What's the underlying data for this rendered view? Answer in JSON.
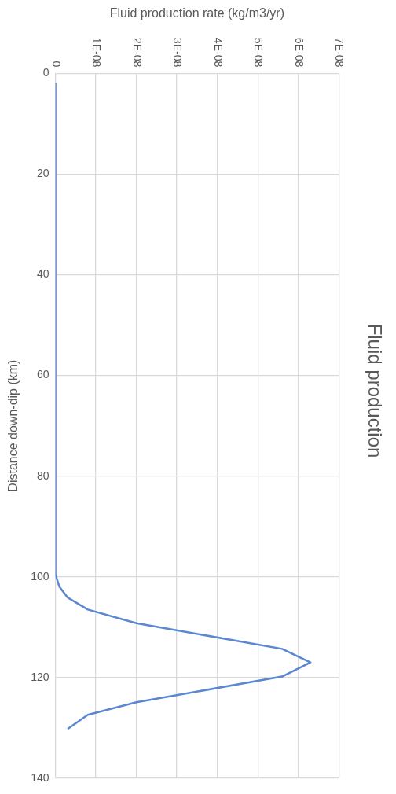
{
  "chart_data": {
    "type": "line",
    "title": "Fluid production",
    "xlabel": "Fluid production rate (kg/m3/yr)",
    "ylabel": "Distance down-dip (km)",
    "x": [
      0,
      0,
      1e-09,
      3e-09,
      8e-09,
      2e-08,
      5.6e-08,
      6.3e-08,
      5.6e-08,
      2e-08,
      8e-09,
      3e-09
    ],
    "series": [
      {
        "color": "#5b87d0",
        "values": [
          2,
          99.5,
          102,
          104.1,
          106.5,
          109.2,
          114.3,
          117,
          119.8,
          124.9,
          127.4,
          130.2
        ]
      }
    ],
    "ylim": [
      140,
      0
    ],
    "yticks": [
      0,
      20,
      40,
      60,
      80,
      100,
      120,
      140
    ],
    "xlim": [
      0,
      7e-08
    ],
    "xticks": [
      0,
      {
        "value": 1e-08,
        "label": "1E-08"
      },
      {
        "value": 2e-08,
        "label": "2E-08"
      },
      {
        "value": 3e-08,
        "label": "3E-08"
      },
      {
        "value": 4e-08,
        "label": "4E-08"
      },
      {
        "value": 5e-08,
        "label": "5E-08"
      },
      {
        "value": 6e-08,
        "label": "6E-08"
      },
      {
        "value": 7e-08,
        "label": "7E-08"
      }
    ],
    "grid": true,
    "legend": false,
    "marker": "none",
    "line_style": "solid"
  }
}
